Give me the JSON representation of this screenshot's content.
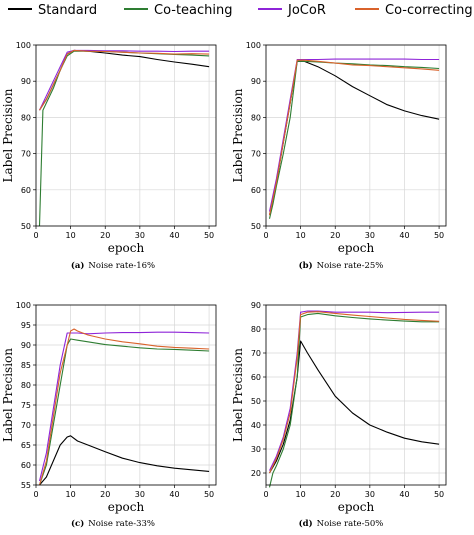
{
  "legend": [
    {
      "label": "Standard",
      "color": "#000000"
    },
    {
      "label": "Co-teaching",
      "color": "#2e7d32"
    },
    {
      "label": "JoCoR",
      "color": "#8e24d8"
    },
    {
      "label": "Co-correcting",
      "color": "#d9622b"
    }
  ],
  "chart_data": [
    {
      "type": "line",
      "caption_tag": "(a)",
      "caption_text": "Noise rate-16%",
      "xlabel": "epoch",
      "ylabel": "Label Precision",
      "xlim": [
        0,
        52
      ],
      "ylim": [
        50,
        100
      ],
      "xticks": [
        0,
        10,
        20,
        30,
        40,
        50
      ],
      "yticks": [
        50,
        60,
        70,
        80,
        90,
        100
      ],
      "grid": true,
      "series": [
        {
          "name": "Standard",
          "x": [
            1,
            3,
            5,
            7,
            9,
            11,
            15,
            20,
            25,
            30,
            35,
            40,
            45,
            50
          ],
          "y": [
            82,
            85,
            89,
            93,
            97.5,
            98.5,
            98.3,
            97.8,
            97.2,
            96.8,
            96,
            95.3,
            94.7,
            94
          ]
        },
        {
          "name": "Co-teaching",
          "x": [
            1,
            2,
            3,
            5,
            7,
            9,
            11,
            15,
            20,
            25,
            30,
            35,
            40,
            45,
            50
          ],
          "y": [
            50,
            82,
            84,
            88,
            93,
            97,
            98.3,
            98.3,
            98.2,
            98,
            97.8,
            97.6,
            97.4,
            97.2,
            97
          ]
        },
        {
          "name": "JoCoR",
          "x": [
            1,
            3,
            5,
            7,
            9,
            11,
            15,
            20,
            25,
            30,
            35,
            40,
            45,
            50
          ],
          "y": [
            82,
            86,
            90,
            94,
            98,
            98.5,
            98.5,
            98.4,
            98.4,
            98.3,
            98.3,
            98.2,
            98.3,
            98.3
          ]
        },
        {
          "name": "Co-correcting",
          "x": [
            1,
            3,
            5,
            7,
            9,
            11,
            15,
            20,
            25,
            30,
            35,
            40,
            45,
            50
          ],
          "y": [
            82,
            85,
            89,
            93,
            97.5,
            98.5,
            98.3,
            98.2,
            98,
            97.8,
            97.7,
            97.5,
            97.6,
            97.5
          ]
        }
      ]
    },
    {
      "type": "line",
      "caption_tag": "(b)",
      "caption_text": "Noise rate-25%",
      "xlabel": "epoch",
      "ylabel": "Label Precision",
      "xlim": [
        0,
        52
      ],
      "ylim": [
        50,
        100
      ],
      "xticks": [
        0,
        10,
        20,
        30,
        40,
        50
      ],
      "yticks": [
        50,
        60,
        70,
        80,
        90,
        100
      ],
      "grid": true,
      "series": [
        {
          "name": "Standard",
          "x": [
            1,
            3,
            5,
            7,
            9,
            11,
            15,
            20,
            25,
            30,
            35,
            40,
            45,
            50
          ],
          "y": [
            53,
            62,
            73,
            84,
            95.5,
            95.5,
            94,
            91.5,
            88.5,
            86,
            83.5,
            81.8,
            80.5,
            79.5
          ]
        },
        {
          "name": "Co-teaching",
          "x": [
            1,
            2,
            3,
            5,
            7,
            9,
            11,
            15,
            20,
            25,
            30,
            35,
            40,
            45,
            50
          ],
          "y": [
            52,
            56,
            61,
            70,
            80,
            95.5,
            95.5,
            95.3,
            95,
            94.8,
            94.5,
            94.3,
            94,
            93.8,
            93.5
          ]
        },
        {
          "name": "JoCoR",
          "x": [
            1,
            3,
            5,
            7,
            9,
            11,
            15,
            20,
            25,
            30,
            35,
            40,
            45,
            50
          ],
          "y": [
            54,
            63,
            74,
            85,
            96,
            96,
            96,
            96.1,
            96.1,
            96.1,
            96.1,
            96.1,
            96,
            96
          ]
        },
        {
          "name": "Co-correcting",
          "x": [
            1,
            3,
            5,
            7,
            9,
            11,
            15,
            20,
            25,
            30,
            35,
            40,
            45,
            50
          ],
          "y": [
            53,
            62,
            73,
            84,
            95.8,
            95.8,
            95.5,
            95,
            94.5,
            94.3,
            94,
            93.7,
            93.4,
            93
          ]
        }
      ]
    },
    {
      "type": "line",
      "caption_tag": "(c)",
      "caption_text": "Noise rate-33%",
      "xlabel": "epoch",
      "ylabel": "Label Precision",
      "xlim": [
        0,
        52
      ],
      "ylim": [
        55,
        100
      ],
      "xticks": [
        0,
        10,
        20,
        30,
        40,
        50
      ],
      "yticks": [
        55,
        60,
        65,
        70,
        75,
        80,
        85,
        90,
        95,
        100
      ],
      "grid": true,
      "series": [
        {
          "name": "Standard",
          "x": [
            1,
            3,
            5,
            7,
            9,
            10,
            12,
            15,
            20,
            25,
            30,
            35,
            40,
            45,
            50
          ],
          "y": [
            55,
            57,
            61,
            65,
            67,
            67.3,
            66,
            65,
            63.3,
            61.7,
            60.6,
            59.8,
            59.2,
            58.8,
            58.4
          ]
        },
        {
          "name": "Co-teaching",
          "x": [
            1,
            3,
            5,
            7,
            9,
            10,
            12,
            15,
            20,
            25,
            30,
            35,
            40,
            45,
            50
          ],
          "y": [
            55,
            60,
            70,
            80,
            90,
            91.5,
            91.2,
            90.8,
            90.1,
            89.7,
            89.3,
            89,
            88.9,
            88.7,
            88.5
          ]
        },
        {
          "name": "JoCoR",
          "x": [
            1,
            3,
            5,
            7,
            9,
            10,
            12,
            15,
            20,
            25,
            30,
            35,
            40,
            45,
            50
          ],
          "y": [
            56,
            63,
            74,
            85,
            93,
            93,
            93,
            92.8,
            93,
            93.1,
            93.1,
            93.2,
            93.2,
            93.1,
            93
          ]
        },
        {
          "name": "Co-correcting",
          "x": [
            1,
            3,
            5,
            7,
            9,
            10,
            11,
            12,
            15,
            20,
            25,
            30,
            35,
            40,
            45,
            50
          ],
          "y": [
            55,
            61,
            72,
            83,
            90,
            93.5,
            94,
            93.5,
            92.5,
            91.5,
            90.8,
            90.3,
            89.7,
            89.4,
            89.2,
            89
          ]
        }
      ]
    },
    {
      "type": "line",
      "caption_tag": "(d)",
      "caption_text": "Noise rate-50%",
      "xlabel": "epoch",
      "ylabel": "Label Precision",
      "xlim": [
        0,
        52
      ],
      "ylim": [
        15,
        90
      ],
      "xticks": [
        0,
        10,
        20,
        30,
        40,
        50
      ],
      "yticks": [
        20,
        30,
        40,
        50,
        60,
        70,
        80,
        90
      ],
      "grid": true,
      "series": [
        {
          "name": "Standard",
          "x": [
            1,
            3,
            5,
            7,
            9,
            10,
            12,
            15,
            20,
            25,
            30,
            35,
            40,
            45,
            50
          ],
          "y": [
            20,
            25,
            32,
            42,
            60,
            75,
            70,
            63,
            52,
            45,
            40,
            37,
            34.5,
            33,
            32
          ]
        },
        {
          "name": "Co-teaching",
          "x": [
            1,
            2,
            3,
            5,
            7,
            9,
            10,
            12,
            15,
            20,
            25,
            30,
            35,
            40,
            45,
            50
          ],
          "y": [
            14,
            20,
            23,
            30,
            40,
            60,
            85,
            86,
            86.5,
            85.5,
            84.8,
            84.2,
            83.7,
            83.3,
            83,
            83
          ]
        },
        {
          "name": "JoCoR",
          "x": [
            1,
            3,
            5,
            7,
            9,
            10,
            12,
            15,
            20,
            25,
            30,
            35,
            40,
            45,
            50
          ],
          "y": [
            21,
            27,
            35,
            47,
            70,
            87,
            87.5,
            87.5,
            87,
            87,
            87,
            86.8,
            86.9,
            87,
            87
          ]
        },
        {
          "name": "Co-correcting",
          "x": [
            1,
            3,
            5,
            7,
            9,
            10,
            12,
            15,
            20,
            25,
            30,
            35,
            40,
            45,
            50
          ],
          "y": [
            20,
            26,
            34,
            45,
            68,
            86,
            87,
            87.2,
            86.5,
            85.8,
            85.2,
            84.6,
            84,
            83.6,
            83.2
          ]
        }
      ]
    }
  ]
}
